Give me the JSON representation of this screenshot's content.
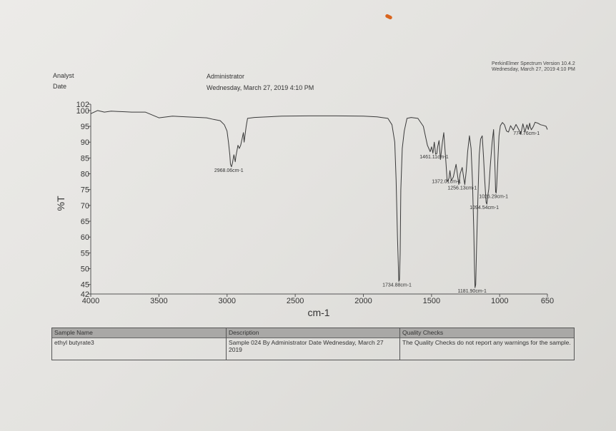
{
  "header": {
    "analyst_label": "Analyst",
    "date_label": "Date",
    "analyst_value": "Administrator",
    "date_value": "Wednesday, March 27, 2019 4:10 PM",
    "vendor_line1": "PerkinElmer Spectrum Version 10.4.2",
    "vendor_line2": "Wednesday, March 27, 2019 4:10 PM"
  },
  "table": {
    "sample_name_header": "Sample Name",
    "sample_name_value": "ethyl butyrate3",
    "description_header": "Description",
    "description_value": "Sample 024 By Administrator Date Wednesday, March 27 2019",
    "quality_header": "Quality Checks",
    "quality_value": "The Quality Checks do not report any warnings for the sample."
  },
  "chart_data": {
    "type": "line",
    "xlabel": "cm-1",
    "ylabel": "%T",
    "xlim": [
      4000,
      650
    ],
    "ylim": [
      42,
      102
    ],
    "x_ticks": [
      "4000",
      "3500",
      "3000",
      "2500",
      "2000",
      "1500",
      "1000",
      "650"
    ],
    "y_ticks": [
      "102",
      "100",
      "95",
      "90",
      "85",
      "80",
      "75",
      "70",
      "65",
      "60",
      "55",
      "50",
      "45",
      "42"
    ],
    "series": [
      {
        "x": [
          4000,
          3950,
          3900,
          3850,
          3800,
          3750,
          3700,
          3600,
          3500,
          3400,
          3300,
          3200,
          3150,
          3100,
          3050,
          3020,
          3000,
          2990,
          2980,
          2975,
          2968,
          2960,
          2950,
          2940,
          2935,
          2920,
          2910,
          2900,
          2890,
          2880,
          2875,
          2860,
          2850,
          2800,
          2600,
          2400,
          2200,
          2000,
          1900,
          1820,
          1790,
          1770,
          1760,
          1750,
          1740,
          1735,
          1730,
          1725,
          1715,
          1700,
          1680,
          1650,
          1600,
          1560,
          1530,
          1510,
          1500,
          1490,
          1480,
          1470,
          1461,
          1455,
          1445,
          1435,
          1420,
          1410,
          1395,
          1385,
          1378,
          1372,
          1365,
          1355,
          1340,
          1320,
          1300,
          1290,
          1275,
          1265,
          1256,
          1245,
          1235,
          1222,
          1210,
          1200,
          1190,
          1185,
          1181,
          1176,
          1170,
          1160,
          1150,
          1140,
          1128,
          1118,
          1110,
          1100,
          1094,
          1088,
          1080,
          1070,
          1055,
          1045,
          1038,
          1033,
          1030,
          1026,
          1022,
          1015,
          1005,
          995,
          980,
          965,
          950,
          935,
          920,
          900,
          880,
          860,
          845,
          830,
          815,
          800,
          790,
          780,
          774,
          768,
          755,
          740,
          720,
          700,
          680,
          660,
          650
        ],
        "y": [
          99,
          100,
          99.5,
          99.8,
          99.7,
          99.6,
          99.5,
          99.5,
          97.7,
          98.2,
          98,
          97.8,
          97.7,
          97.2,
          96.8,
          95.5,
          93.5,
          90,
          86,
          83,
          82.2,
          83.5,
          86,
          83.8,
          85.5,
          89,
          88,
          89,
          91,
          93,
          90,
          95,
          97.5,
          97.8,
          98.2,
          98.3,
          98.3,
          98.2,
          98,
          97.5,
          95.5,
          90,
          78,
          60,
          46,
          46.5,
          55,
          75,
          88,
          93.5,
          97.5,
          97.8,
          97.5,
          95,
          89,
          87,
          88.5,
          86.5,
          90,
          86.2,
          86.4,
          88.5,
          90.5,
          84.5,
          90,
          93,
          84,
          77.5,
          78,
          78.6,
          81,
          77.8,
          79,
          83,
          76.6,
          80,
          82,
          79,
          76.6,
          81,
          87,
          92,
          88,
          78,
          62,
          50,
          44,
          45,
          56,
          72,
          86,
          91,
          92,
          85,
          78,
          71,
          70.4,
          73,
          75.2,
          82,
          90,
          94,
          86,
          80,
          74.3,
          73.9,
          76,
          83,
          92,
          95.2,
          96.2,
          95.5,
          93.5,
          93.2,
          95.2,
          93.8,
          95.6,
          94,
          92.5,
          95.8,
          93.2,
          95.5,
          94,
          96,
          94.7,
          93.9,
          94.8,
          96.3,
          96,
          95.5,
          95.3,
          95,
          94
        ]
      }
    ],
    "annotations": [
      {
        "text": "2968.06cm-1",
        "x": 2968.06,
        "y": 82.2
      },
      {
        "text": "1734.88cm-1",
        "x": 1734.88,
        "y": 46
      },
      {
        "text": "1461.11cm-1",
        "x": 1461.11,
        "y": 86.4
      },
      {
        "text": "1372.01cm-1",
        "x": 1372.01,
        "y": 78.6
      },
      {
        "text": "1256.13cm-1",
        "x": 1256.13,
        "y": 76.6
      },
      {
        "text": "1181.90cm-1",
        "x": 1181.9,
        "y": 44
      },
      {
        "text": "1094.54cm-1",
        "x": 1094.54,
        "y": 70.4
      },
      {
        "text": "1026.29cm-1",
        "x": 1026.29,
        "y": 73.9
      },
      {
        "text": "774.76cm-1",
        "x": 774.76,
        "y": 93.9
      }
    ]
  }
}
